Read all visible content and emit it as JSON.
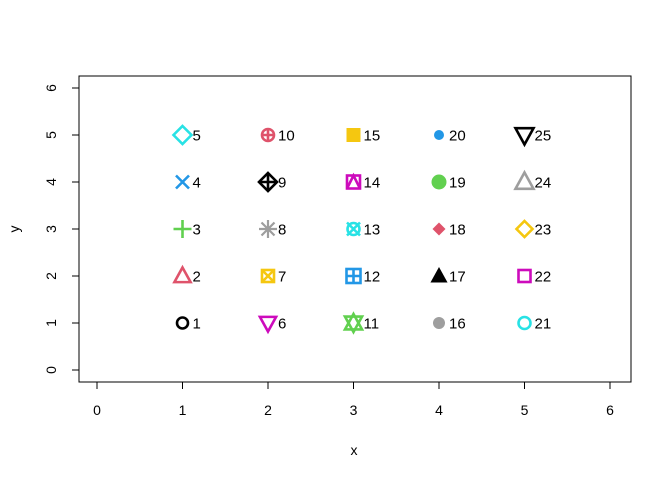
{
  "chart_data": {
    "type": "scatter",
    "title": "",
    "xlabel": "x",
    "ylabel": "y",
    "xlim": [
      0,
      6
    ],
    "ylim": [
      0,
      6
    ],
    "xticks": [
      "0",
      "1",
      "2",
      "3",
      "4",
      "5",
      "6"
    ],
    "yticks": [
      "0",
      "1",
      "2",
      "3",
      "4",
      "5",
      "6"
    ],
    "grid": false,
    "points": [
      {
        "x": 1,
        "y": 1,
        "label": "1",
        "pch": 1,
        "color": "#000000"
      },
      {
        "x": 1,
        "y": 2,
        "label": "2",
        "pch": 2,
        "color": "#DF536B"
      },
      {
        "x": 1,
        "y": 3,
        "label": "3",
        "pch": 3,
        "color": "#61D04F"
      },
      {
        "x": 1,
        "y": 4,
        "label": "4",
        "pch": 4,
        "color": "#2297E6"
      },
      {
        "x": 1,
        "y": 5,
        "label": "5",
        "pch": 5,
        "color": "#28E2E5"
      },
      {
        "x": 2,
        "y": 1,
        "label": "6",
        "pch": 6,
        "color": "#CD0BBC"
      },
      {
        "x": 2,
        "y": 2,
        "label": "7",
        "pch": 7,
        "color": "#F5C710"
      },
      {
        "x": 2,
        "y": 3,
        "label": "8",
        "pch": 8,
        "color": "#9E9E9E"
      },
      {
        "x": 2,
        "y": 4,
        "label": "9",
        "pch": 9,
        "color": "#000000"
      },
      {
        "x": 2,
        "y": 5,
        "label": "10",
        "pch": 10,
        "color": "#DF536B"
      },
      {
        "x": 3,
        "y": 1,
        "label": "11",
        "pch": 11,
        "color": "#61D04F"
      },
      {
        "x": 3,
        "y": 2,
        "label": "12",
        "pch": 12,
        "color": "#2297E6"
      },
      {
        "x": 3,
        "y": 3,
        "label": "13",
        "pch": 13,
        "color": "#28E2E5"
      },
      {
        "x": 3,
        "y": 4,
        "label": "14",
        "pch": 14,
        "color": "#CD0BBC"
      },
      {
        "x": 3,
        "y": 5,
        "label": "15",
        "pch": 15,
        "color": "#F5C710"
      },
      {
        "x": 4,
        "y": 1,
        "label": "16",
        "pch": 16,
        "color": "#9E9E9E"
      },
      {
        "x": 4,
        "y": 2,
        "label": "17",
        "pch": 17,
        "color": "#000000"
      },
      {
        "x": 4,
        "y": 3,
        "label": "18",
        "pch": 18,
        "color": "#DF536B"
      },
      {
        "x": 4,
        "y": 4,
        "label": "19",
        "pch": 19,
        "color": "#61D04F"
      },
      {
        "x": 4,
        "y": 5,
        "label": "20",
        "pch": 20,
        "color": "#2297E6"
      },
      {
        "x": 5,
        "y": 1,
        "label": "21",
        "pch": 21,
        "color": "#28E2E5"
      },
      {
        "x": 5,
        "y": 2,
        "label": "22",
        "pch": 22,
        "color": "#CD0BBC"
      },
      {
        "x": 5,
        "y": 3,
        "label": "23",
        "pch": 23,
        "color": "#F5C710"
      },
      {
        "x": 5,
        "y": 4,
        "label": "24",
        "pch": 24,
        "color": "#9E9E9E"
      },
      {
        "x": 5,
        "y": 5,
        "label": "25",
        "pch": 25,
        "color": "#000000"
      }
    ]
  }
}
